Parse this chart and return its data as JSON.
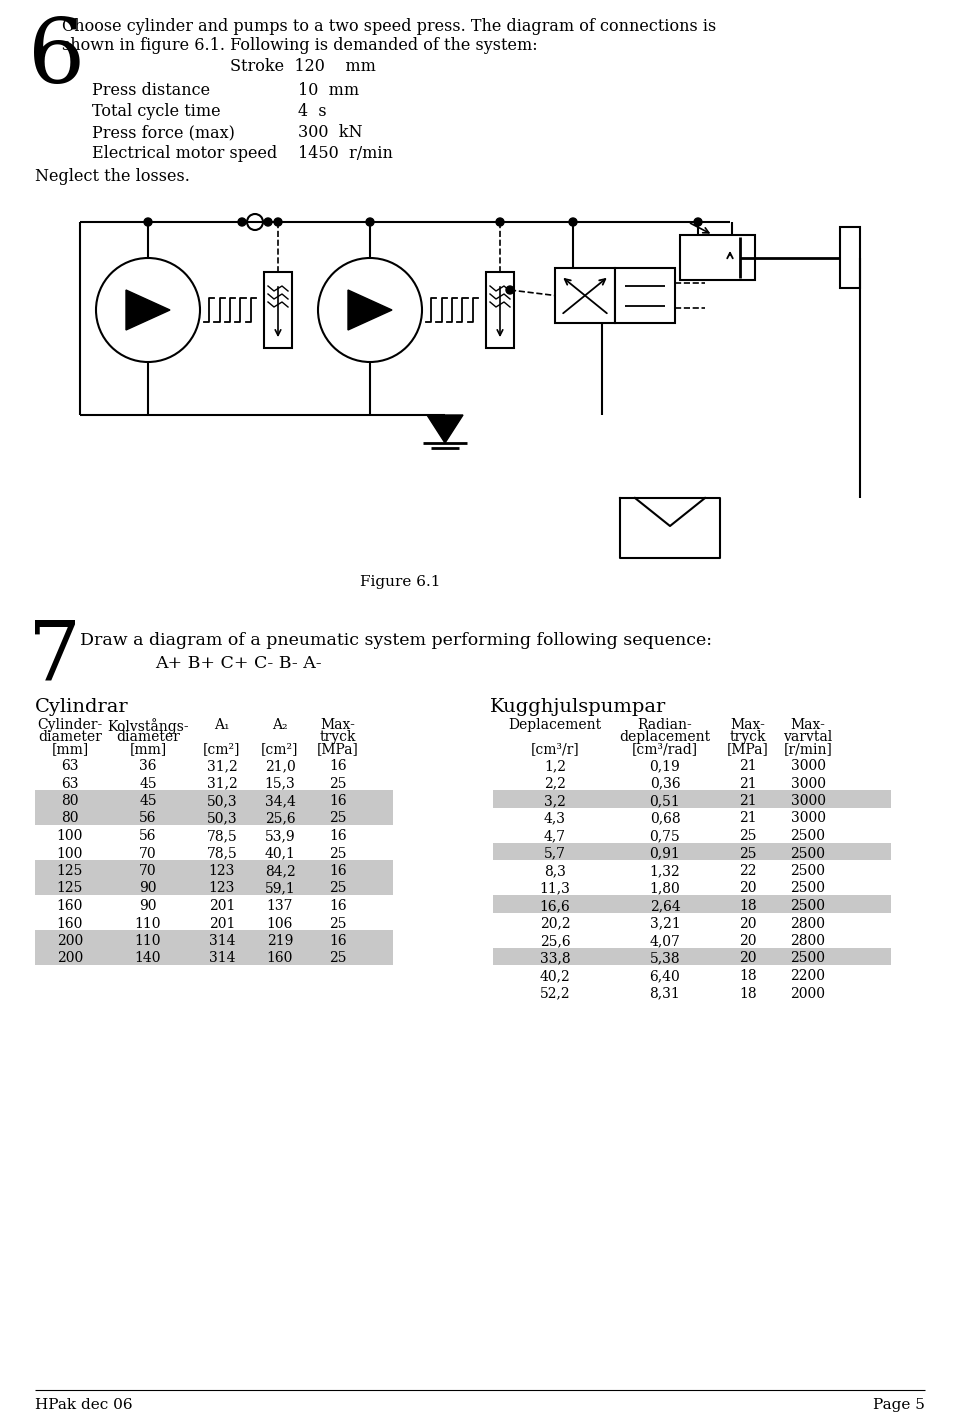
{
  "page_bg": "#ffffff",
  "section6_text_line1": "Choose cylinder and pumps to a two speed press. The diagram of connections is",
  "section6_text_line2": "shown in figure 6.1. Following is demanded of the system:",
  "stroke_label": "Stroke  120    mm",
  "press_distance_label": "Press distance",
  "press_distance_val": "10  mm",
  "total_cycle_label": "Total cycle time",
  "total_cycle_val": "4  s",
  "press_force_label": "Press force (max)",
  "press_force_val": "300  kN",
  "elec_motor_label": "Electrical motor speed",
  "elec_motor_val": "1450  r/min",
  "neglect": "Neglect the losses.",
  "figure_label": "Figure 6.1",
  "section7_text": "Draw a diagram of a pneumatic system performing following sequence:",
  "section7_seq": "A+ B+ C+ C- B- A-",
  "cyl_title": "Cylindrar",
  "pump_title": "Kugghjulspumpar",
  "cyl_data": [
    [
      63,
      36,
      "31,2",
      "21,0",
      16
    ],
    [
      63,
      45,
      "31,2",
      "15,3",
      25
    ],
    [
      80,
      45,
      "50,3",
      "34,4",
      16
    ],
    [
      80,
      56,
      "50,3",
      "25,6",
      25
    ],
    [
      100,
      56,
      "78,5",
      "53,9",
      16
    ],
    [
      100,
      70,
      "78,5",
      "40,1",
      25
    ],
    [
      125,
      70,
      123,
      "84,2",
      16
    ],
    [
      125,
      90,
      123,
      "59,1",
      25
    ],
    [
      160,
      90,
      201,
      137,
      16
    ],
    [
      160,
      110,
      201,
      106,
      25
    ],
    [
      200,
      110,
      314,
      219,
      16
    ],
    [
      200,
      140,
      314,
      160,
      25
    ]
  ],
  "cyl_shaded_rows": [
    2,
    3,
    6,
    7,
    10,
    11
  ],
  "pump_data": [
    [
      "1,2",
      "0,19",
      21,
      3000
    ],
    [
      "2,2",
      "0,36",
      21,
      3000
    ],
    [
      "3,2",
      "0,51",
      21,
      3000
    ],
    [
      "4,3",
      "0,68",
      21,
      3000
    ],
    [
      "4,7",
      "0,75",
      25,
      2500
    ],
    [
      "5,7",
      "0,91",
      25,
      2500
    ],
    [
      "8,3",
      "1,32",
      22,
      2500
    ],
    [
      "11,3",
      "1,80",
      20,
      2500
    ],
    [
      "16,6",
      "2,64",
      18,
      2500
    ],
    [
      "20,2",
      "3,21",
      20,
      2800
    ],
    [
      "25,6",
      "4,07",
      20,
      2800
    ],
    [
      "33,8",
      "5,38",
      20,
      2500
    ],
    [
      "40,2",
      "6,40",
      18,
      2200
    ],
    [
      "52,2",
      "8,31",
      18,
      2000
    ]
  ],
  "pump_shaded_rows": [
    2,
    5,
    8,
    11
  ],
  "footer_left": "HPak dec 06",
  "footer_right": "Page 5"
}
